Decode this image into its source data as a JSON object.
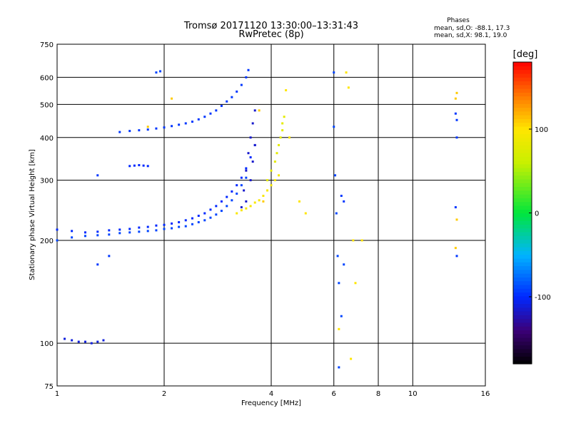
{
  "chart_data": {
    "type": "scatter",
    "title": "Tromsø 20171120 13:30:00–13:31:43",
    "subtitle": "RwPretec (8p)",
    "xlabel": "Frequency [MHz]",
    "ylabel": "Stationary phase Virtual Height [km]",
    "x_scale": "log",
    "y_scale": "log",
    "xlim": [
      1,
      16
    ],
    "ylim": [
      75,
      750
    ],
    "x_ticks": [
      1,
      2,
      4,
      6,
      8,
      10,
      16
    ],
    "y_ticks": [
      75,
      100,
      200,
      300,
      400,
      500,
      600,
      750
    ],
    "grid": true,
    "phase_info": {
      "title": "Phases",
      "line_o": "mean, sd,O:  -88.1, 17.3",
      "line_x": "mean, sd,X:  98.1, 19.0"
    },
    "colorbar": {
      "label": "[deg]",
      "range": [
        -180,
        180
      ],
      "ticks": [
        100,
        0,
        -100
      ]
    },
    "series": [
      {
        "phase": -90,
        "points": [
          [
            1.0,
            200
          ],
          [
            1.1,
            204
          ],
          [
            1.2,
            206
          ],
          [
            1.3,
            207
          ],
          [
            1.4,
            208
          ],
          [
            1.5,
            210
          ],
          [
            1.6,
            211
          ],
          [
            1.7,
            212
          ],
          [
            1.8,
            213
          ],
          [
            1.9,
            214
          ],
          [
            2.0,
            216
          ],
          [
            2.1,
            217
          ],
          [
            2.2,
            219
          ],
          [
            2.3,
            220
          ],
          [
            2.4,
            223
          ],
          [
            2.5,
            226
          ],
          [
            2.6,
            229
          ],
          [
            2.7,
            233
          ],
          [
            2.8,
            238
          ],
          [
            2.9,
            244
          ],
          [
            3.0,
            252
          ],
          [
            3.1,
            262
          ],
          [
            3.2,
            274
          ],
          [
            3.3,
            290
          ],
          [
            3.4,
            305
          ]
        ]
      },
      {
        "phase": -100,
        "points": [
          [
            1.0,
            215
          ],
          [
            1.1,
            213
          ],
          [
            1.2,
            211
          ],
          [
            1.3,
            212
          ],
          [
            1.4,
            214
          ],
          [
            1.5,
            215
          ],
          [
            1.6,
            216
          ],
          [
            1.7,
            218
          ],
          [
            1.8,
            219
          ],
          [
            1.9,
            221
          ],
          [
            2.0,
            222
          ],
          [
            2.1,
            224
          ],
          [
            2.2,
            226
          ],
          [
            2.3,
            229
          ],
          [
            2.4,
            232
          ],
          [
            2.5,
            236
          ],
          [
            2.6,
            240
          ],
          [
            2.7,
            246
          ],
          [
            2.8,
            252
          ],
          [
            2.9,
            260
          ],
          [
            3.0,
            268
          ],
          [
            3.1,
            278
          ],
          [
            3.2,
            290
          ],
          [
            3.3,
            305
          ],
          [
            3.4,
            325
          ],
          [
            3.5,
            350
          ],
          [
            3.6,
            380
          ]
        ]
      },
      {
        "phase": -95,
        "points": [
          [
            1.5,
            415
          ],
          [
            1.6,
            418
          ],
          [
            1.7,
            420
          ],
          [
            1.8,
            422
          ],
          [
            1.9,
            425
          ],
          [
            2.0,
            428
          ],
          [
            2.1,
            432
          ],
          [
            2.2,
            436
          ],
          [
            2.3,
            440
          ],
          [
            2.4,
            445
          ],
          [
            2.5,
            452
          ],
          [
            2.6,
            460
          ],
          [
            2.7,
            470
          ],
          [
            2.8,
            480
          ],
          [
            2.9,
            495
          ],
          [
            3.0,
            510
          ],
          [
            3.1,
            525
          ],
          [
            3.2,
            545
          ],
          [
            3.3,
            570
          ],
          [
            3.4,
            600
          ],
          [
            3.45,
            630
          ]
        ]
      },
      {
        "phase": -115,
        "points": [
          [
            3.3,
            250
          ],
          [
            3.35,
            280
          ],
          [
            3.4,
            320
          ],
          [
            3.45,
            360
          ],
          [
            3.5,
            400
          ],
          [
            3.55,
            440
          ],
          [
            3.6,
            480
          ],
          [
            3.4,
            260
          ],
          [
            3.5,
            300
          ],
          [
            3.55,
            340
          ],
          [
            3.6,
            380
          ]
        ]
      },
      {
        "phase": 95,
        "points": [
          [
            3.2,
            240
          ],
          [
            3.3,
            245
          ],
          [
            3.4,
            248
          ],
          [
            3.5,
            252
          ],
          [
            3.6,
            258
          ],
          [
            3.7,
            262
          ],
          [
            3.8,
            270
          ],
          [
            3.9,
            280
          ],
          [
            4.0,
            290
          ],
          [
            4.1,
            300
          ],
          [
            4.2,
            310
          ]
        ]
      },
      {
        "phase": 80,
        "points": [
          [
            3.9,
            300
          ],
          [
            4.0,
            320
          ],
          [
            4.1,
            340
          ],
          [
            4.15,
            360
          ],
          [
            4.2,
            380
          ],
          [
            4.25,
            400
          ],
          [
            4.3,
            420
          ],
          [
            4.3,
            440
          ],
          [
            4.35,
            460
          ]
        ]
      },
      {
        "phase": -110,
        "points": [
          [
            1.05,
            103
          ],
          [
            1.1,
            102
          ],
          [
            1.15,
            101
          ],
          [
            1.2,
            101
          ],
          [
            1.25,
            100
          ],
          [
            1.3,
            101
          ],
          [
            1.35,
            102
          ]
        ]
      },
      {
        "phase": -100,
        "points": [
          [
            1.6,
            330
          ],
          [
            1.65,
            331
          ],
          [
            1.7,
            332
          ],
          [
            1.75,
            331
          ],
          [
            1.8,
            330
          ]
        ]
      },
      {
        "phase": -90,
        "points": [
          [
            1.9,
            620
          ],
          [
            1.95,
            625
          ],
          [
            6.0,
            620
          ],
          [
            6.0,
            430
          ],
          [
            6.05,
            310
          ],
          [
            6.1,
            240
          ],
          [
            6.15,
            180
          ],
          [
            6.2,
            150
          ],
          [
            6.4,
            170
          ],
          [
            6.2,
            85
          ],
          [
            6.3,
            120
          ]
        ]
      },
      {
        "phase": 100,
        "points": [
          [
            6.5,
            620
          ],
          [
            6.6,
            560
          ],
          [
            6.7,
            90
          ],
          [
            6.8,
            200
          ],
          [
            6.9,
            150
          ],
          [
            6.2,
            110
          ],
          [
            4.4,
            550
          ],
          [
            4.5,
            400
          ],
          [
            4.8,
            260
          ],
          [
            5.0,
            240
          ],
          [
            7.2,
            200
          ]
        ]
      },
      {
        "phase": -95,
        "points": [
          [
            13.2,
            470
          ],
          [
            13.3,
            450
          ],
          [
            13.3,
            400
          ],
          [
            13.2,
            250
          ],
          [
            13.3,
            180
          ],
          [
            6.3,
            270
          ],
          [
            6.4,
            260
          ],
          [
            1.3,
            310
          ],
          [
            1.4,
            180
          ],
          [
            1.3,
            170
          ]
        ]
      },
      {
        "phase": 110,
        "points": [
          [
            13.2,
            520
          ],
          [
            13.3,
            540
          ],
          [
            13.3,
            230
          ],
          [
            13.2,
            190
          ],
          [
            2.1,
            520
          ],
          [
            3.7,
            480
          ],
          [
            3.8,
            260
          ],
          [
            1.8,
            430
          ]
        ]
      }
    ]
  }
}
